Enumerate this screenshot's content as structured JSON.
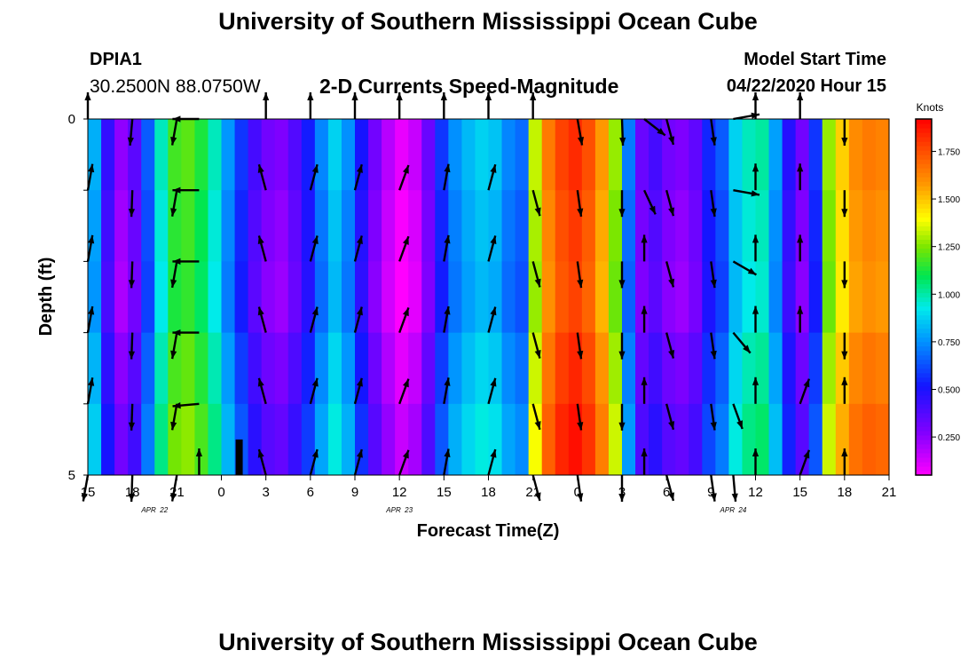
{
  "header": {
    "title": "University of Southern Mississippi Ocean Cube",
    "footer_title": "University of Southern Mississippi Ocean Cube",
    "station_id": "DPIA1",
    "station_coords": "30.2500N 88.0750W",
    "model_start_label": "Model Start Time",
    "model_start_value": "04/22/2020 Hour 15"
  },
  "chart_data": {
    "type": "heatmap",
    "title": "2-D Currents Speed-Magnitude",
    "xlabel": "Forecast Time(Z)",
    "ylabel": "Depth (ft)",
    "xlim": [
      0,
      54
    ],
    "ylim": [
      0,
      5
    ],
    "y_ticks": [
      "0",
      "5"
    ],
    "x_tick_labels": [
      "15",
      "18",
      "21",
      "0",
      "3",
      "6",
      "9",
      "12",
      "15",
      "18",
      "21",
      "0",
      "3",
      "6",
      "9",
      "12",
      "15",
      "18",
      "21"
    ],
    "date_labels": [
      {
        "text": "APR  22",
        "hour": 4.5
      },
      {
        "text": "APR  23",
        "hour": 21
      },
      {
        "text": "APR  24",
        "hour": 43.5
      }
    ],
    "colorbar": {
      "label": "Knots",
      "min": 0.05,
      "max": 1.92,
      "tick_labels": [
        "0.250",
        "0.500",
        "0.750",
        "1.000",
        "1.250",
        "1.500",
        "1.750"
      ],
      "tick_values": [
        0.25,
        0.5,
        0.75,
        1.0,
        1.25,
        1.5,
        1.75
      ]
    },
    "depth_bands": 5,
    "depth_band_offsets": [
      0.03,
      0.0,
      -0.02,
      0.04,
      0.09
    ],
    "speed_knots": [
      0.78,
      0.42,
      0.22,
      0.33,
      0.62,
      0.95,
      1.15,
      1.18,
      1.1,
      0.95,
      0.73,
      0.55,
      0.38,
      0.28,
      0.25,
      0.35,
      0.5,
      0.7,
      0.85,
      0.72,
      0.48,
      0.28,
      0.15,
      0.06,
      0.12,
      0.3,
      0.55,
      0.72,
      0.8,
      0.85,
      0.82,
      0.7,
      0.65,
      1.3,
      1.62,
      1.75,
      1.8,
      1.72,
      1.55,
      1.25,
      0.68,
      0.3,
      0.38,
      0.28,
      0.25,
      0.32,
      0.52,
      0.62,
      0.85,
      0.95,
      0.98,
      0.75,
      0.45,
      0.28,
      0.55,
      1.25,
      1.45,
      1.58,
      1.62,
      1.6
    ],
    "vectors": [
      {
        "hour": 0,
        "dirs": [
          0,
          10,
          10,
          10,
          10,
          190
        ]
      },
      {
        "hour": 3,
        "dirs": [
          185,
          182,
          182,
          182,
          182,
          182
        ]
      },
      {
        "hour": 6,
        "dirs": [
          190,
          190,
          190,
          190,
          190,
          190
        ]
      },
      {
        "hour": 7.5,
        "dirs": [
          270,
          270,
          270,
          270,
          265,
          0
        ]
      },
      {
        "hour": 12,
        "dirs": [
          0,
          345,
          345,
          345,
          345,
          345
        ]
      },
      {
        "hour": 15,
        "dirs": [
          0,
          15,
          15,
          15,
          15,
          15
        ]
      },
      {
        "hour": 18,
        "dirs": [
          0,
          15,
          15,
          15,
          15,
          15
        ]
      },
      {
        "hour": 21,
        "dirs": [
          0,
          20,
          20,
          20,
          20,
          20
        ]
      },
      {
        "hour": 24,
        "dirs": [
          0,
          10,
          10,
          10,
          10,
          10
        ]
      },
      {
        "hour": 27,
        "dirs": [
          0,
          15,
          15,
          15,
          15,
          15
        ]
      },
      {
        "hour": 30,
        "dirs": [
          0,
          165,
          165,
          165,
          165,
          165
        ]
      },
      {
        "hour": 33,
        "dirs": [
          170,
          172,
          172,
          172,
          172,
          172
        ]
      },
      {
        "hour": 36,
        "dirs": [
          178,
          180,
          180,
          180,
          180,
          180
        ]
      },
      {
        "hour": 37.5,
        "dirs": [
          128,
          155,
          0,
          0,
          0,
          0
        ]
      },
      {
        "hour": 39,
        "dirs": [
          165,
          165,
          165,
          165,
          165,
          165
        ]
      },
      {
        "hour": 42,
        "dirs": [
          172,
          172,
          172,
          172,
          172,
          172
        ]
      },
      {
        "hour": 43.5,
        "dirs": [
          80,
          100,
          120,
          140,
          160,
          175
        ]
      },
      {
        "hour": 45,
        "dirs": [
          0,
          0,
          0,
          0,
          0,
          0
        ]
      },
      {
        "hour": 48,
        "dirs": [
          0,
          0,
          0,
          0,
          20,
          20
        ]
      },
      {
        "hour": 51,
        "dirs": [
          180,
          180,
          180,
          180,
          0,
          0
        ]
      }
    ]
  }
}
